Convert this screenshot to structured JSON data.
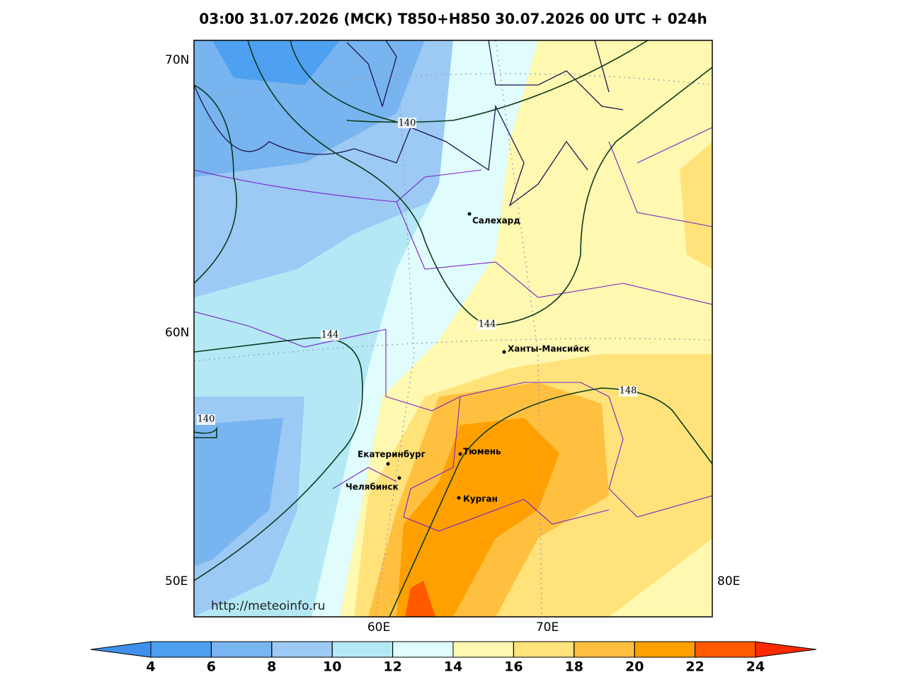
{
  "title": "03:00 31.07.2026 (МСК) T850+H850 30.07.2026 00 UTC + 024h",
  "axis_labels": [
    "70N",
    "60N",
    "50E",
    "80E",
    "60E",
    "70E"
  ],
  "contour_labels": [
    140,
    144,
    144,
    148,
    140
  ],
  "cities": [
    "Салехард",
    "Ханты-Мансийск",
    "Екатеринбург",
    "Тюмень",
    "Челябинск",
    "Курган"
  ],
  "source": "http://meteoinfo.ru",
  "colorbar": {
    "ticks": [
      4,
      6,
      8,
      10,
      12,
      14,
      16,
      18,
      20,
      22,
      24
    ],
    "colors": [
      "#3f90ea",
      "#4ea0f0",
      "#78b4f0",
      "#9ccaf5",
      "#b4e8f5",
      "#e0fcfc",
      "#fff8b0",
      "#ffe27a",
      "#ffc040",
      "#ffa000",
      "#ff5a00",
      "#ff2a00"
    ]
  }
}
